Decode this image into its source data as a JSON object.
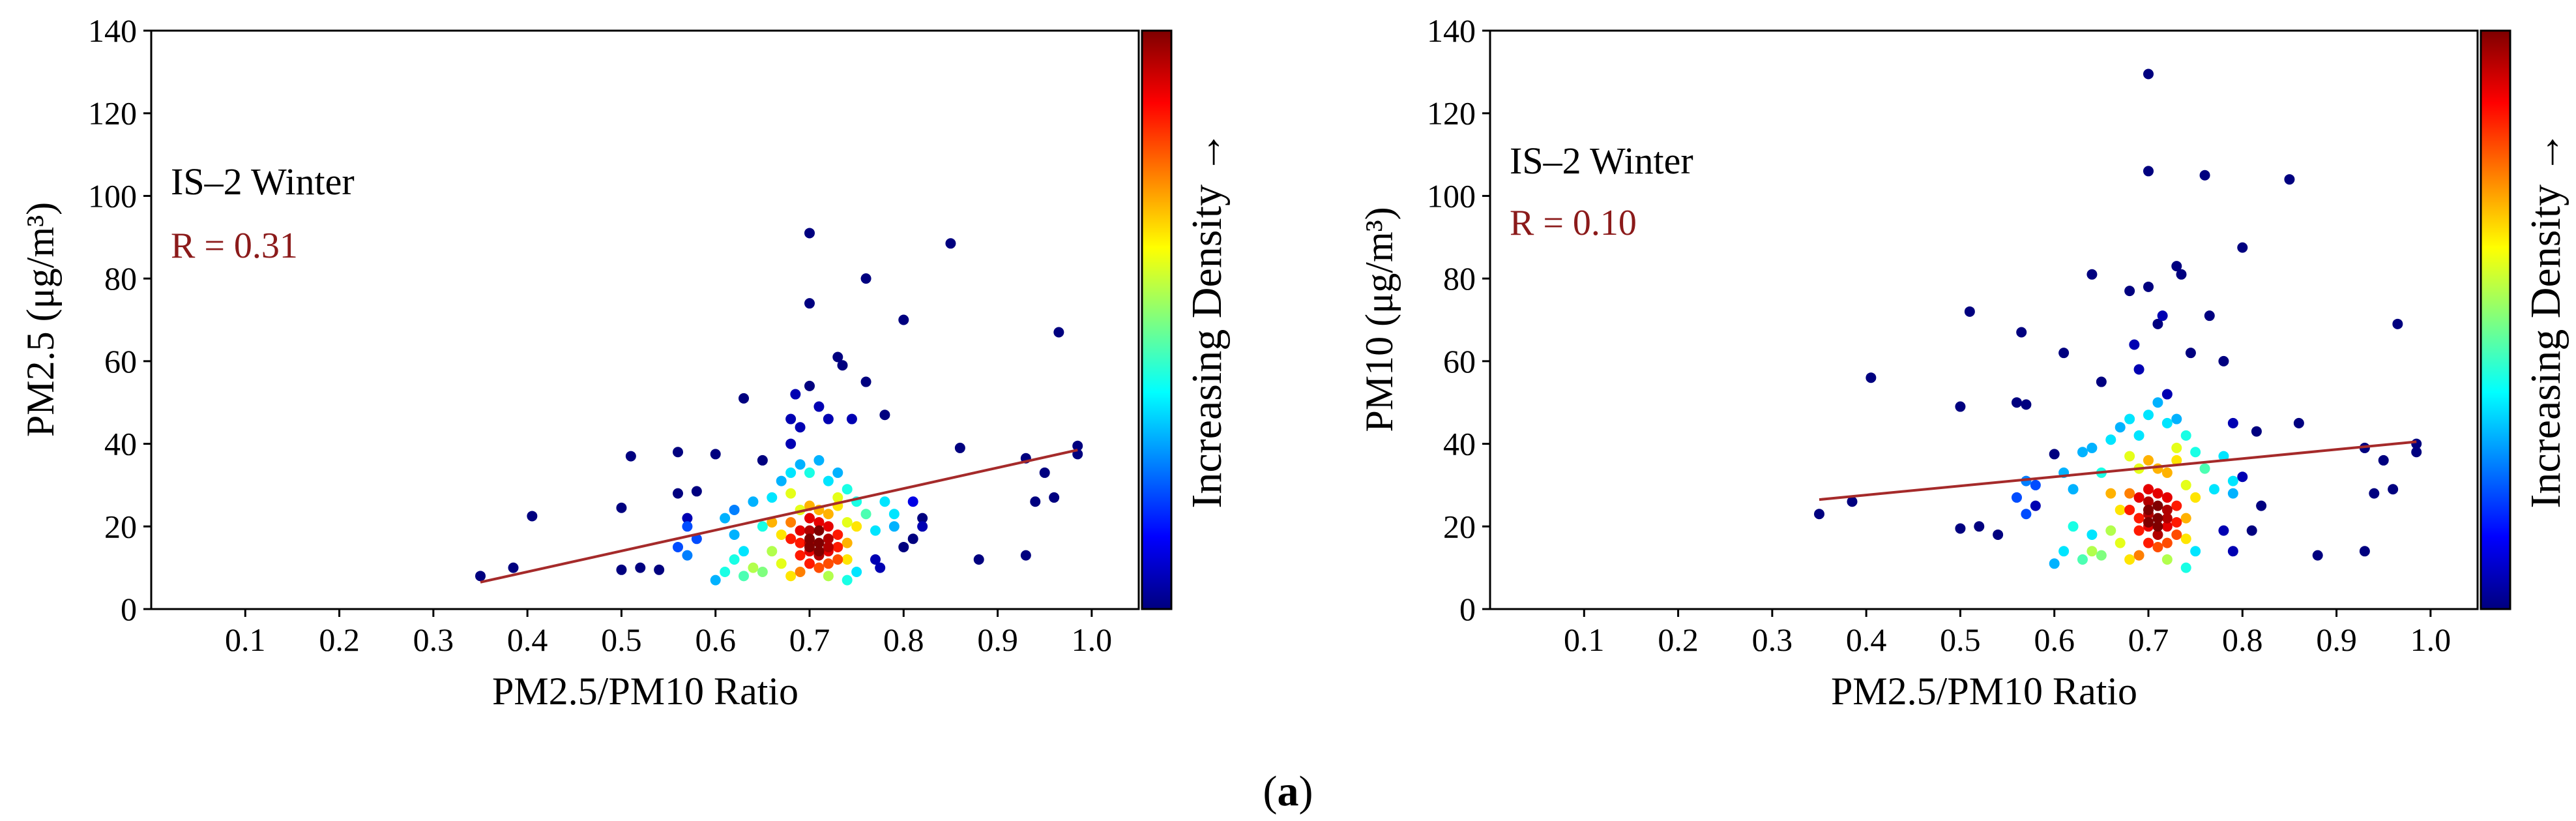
{
  "figure": {
    "sub_label_open": "(",
    "sub_label_letter": "a",
    "sub_label_close": ")"
  },
  "colorbar_label": "Increasing Density →",
  "colors": {
    "fit_line": "#a52a2a",
    "r_text": "#8b1a1a",
    "colormap": [
      "#00007f",
      "#0000ff",
      "#007fff",
      "#00ffff",
      "#7fff7f",
      "#ffff00",
      "#ff7f00",
      "#ff0000",
      "#7f0000"
    ]
  },
  "chart_data": [
    {
      "type": "scatter",
      "annotation": "IS–2 Winter",
      "r_label": "R = 0.31",
      "xlabel": "PM2.5/PM10 Ratio",
      "ylabel": "PM2.5 (μg/m³)",
      "xlim": [
        0.0,
        1.05
      ],
      "ylim": [
        0,
        140
      ],
      "xticks": [
        0.1,
        0.2,
        0.3,
        0.4,
        0.5,
        0.6,
        0.7,
        0.8,
        0.9,
        1.0
      ],
      "xtick_labels": [
        "0.1",
        "0.2",
        "0.3",
        "0.4",
        "0.5",
        "0.6",
        "0.7",
        "0.8",
        "0.9",
        "1.0"
      ],
      "yticks": [
        0,
        20,
        40,
        60,
        80,
        100,
        120,
        140
      ],
      "ytick_labels": [
        "0",
        "20",
        "40",
        "60",
        "80",
        "100",
        "120",
        "140"
      ],
      "fit_line": {
        "x": [
          0.35,
          0.985
        ],
        "y": [
          6.5,
          38.5
        ]
      },
      "points": [
        [
          0.35,
          8,
          0
        ],
        [
          0.385,
          10,
          0
        ],
        [
          0.405,
          22.5,
          0
        ],
        [
          0.5,
          9.5,
          0
        ],
        [
          0.5,
          24.5,
          0
        ],
        [
          0.51,
          37,
          0
        ],
        [
          0.52,
          10,
          0
        ],
        [
          0.54,
          9.5,
          0
        ],
        [
          0.56,
          28,
          0
        ],
        [
          0.56,
          38,
          0
        ],
        [
          0.57,
          22,
          0.05
        ],
        [
          0.58,
          28.5,
          0
        ],
        [
          0.6,
          37.5,
          0
        ],
        [
          0.63,
          51,
          0
        ],
        [
          0.65,
          36,
          0
        ],
        [
          0.68,
          46,
          0.05
        ],
        [
          0.68,
          40,
          0.05
        ],
        [
          0.685,
          52,
          0.05
        ],
        [
          0.69,
          44,
          0.05
        ],
        [
          0.7,
          91,
          0
        ],
        [
          0.7,
          74,
          0
        ],
        [
          0.7,
          54,
          0
        ],
        [
          0.71,
          49,
          0.05
        ],
        [
          0.72,
          46,
          0.05
        ],
        [
          0.73,
          61,
          0
        ],
        [
          0.735,
          59,
          0
        ],
        [
          0.745,
          46,
          0.05
        ],
        [
          0.76,
          80,
          0
        ],
        [
          0.76,
          55,
          0
        ],
        [
          0.78,
          47,
          0
        ],
        [
          0.8,
          70,
          0
        ],
        [
          0.85,
          88.5,
          0
        ],
        [
          0.86,
          39,
          0
        ],
        [
          0.88,
          12,
          0
        ],
        [
          0.93,
          36.5,
          0
        ],
        [
          0.93,
          13,
          0
        ],
        [
          0.94,
          26,
          0
        ],
        [
          0.95,
          33,
          0
        ],
        [
          0.96,
          27,
          0
        ],
        [
          0.965,
          67,
          0
        ],
        [
          0.985,
          37.5,
          0
        ],
        [
          0.985,
          39.5,
          0
        ],
        [
          0.81,
          17,
          0
        ],
        [
          0.82,
          22,
          0
        ],
        [
          0.82,
          20,
          0.05
        ],
        [
          0.77,
          12,
          0.05
        ],
        [
          0.775,
          10,
          0.05
        ],
        [
          0.8,
          15,
          0
        ],
        [
          0.81,
          26,
          0.1
        ],
        [
          0.56,
          15,
          0.2
        ],
        [
          0.57,
          20,
          0.2
        ],
        [
          0.57,
          13,
          0.25
        ],
        [
          0.58,
          17,
          0.2
        ],
        [
          0.6,
          7,
          0.3
        ],
        [
          0.61,
          9,
          0.4
        ],
        [
          0.61,
          22,
          0.3
        ],
        [
          0.62,
          12,
          0.4
        ],
        [
          0.62,
          18,
          0.3
        ],
        [
          0.62,
          24,
          0.25
        ],
        [
          0.63,
          8,
          0.45
        ],
        [
          0.63,
          14,
          0.35
        ],
        [
          0.64,
          26,
          0.3
        ],
        [
          0.65,
          9,
          0.5
        ],
        [
          0.65,
          20,
          0.4
        ],
        [
          0.66,
          27,
          0.35
        ],
        [
          0.67,
          31,
          0.3
        ],
        [
          0.68,
          33,
          0.35
        ],
        [
          0.69,
          35,
          0.3
        ],
        [
          0.7,
          33,
          0.4
        ],
        [
          0.71,
          36,
          0.3
        ],
        [
          0.72,
          31,
          0.35
        ],
        [
          0.73,
          33,
          0.3
        ],
        [
          0.74,
          29,
          0.4
        ],
        [
          0.75,
          26,
          0.4
        ],
        [
          0.76,
          23,
          0.45
        ],
        [
          0.77,
          19,
          0.35
        ],
        [
          0.78,
          26,
          0.35
        ],
        [
          0.79,
          23,
          0.35
        ],
        [
          0.79,
          20,
          0.3
        ],
        [
          0.75,
          9,
          0.35
        ],
        [
          0.74,
          7,
          0.4
        ],
        [
          0.64,
          10,
          0.55
        ],
        [
          0.66,
          14,
          0.55
        ],
        [
          0.67,
          11,
          0.6
        ],
        [
          0.68,
          8,
          0.65
        ],
        [
          0.68,
          28,
          0.6
        ],
        [
          0.69,
          24,
          0.6
        ],
        [
          0.73,
          27,
          0.6
        ],
        [
          0.74,
          21,
          0.6
        ],
        [
          0.72,
          8,
          0.55
        ],
        [
          0.71,
          24,
          0.7
        ],
        [
          0.7,
          25,
          0.7
        ],
        [
          0.72,
          23,
          0.7
        ],
        [
          0.73,
          25,
          0.65
        ],
        [
          0.74,
          16,
          0.7
        ],
        [
          0.75,
          20,
          0.65
        ],
        [
          0.74,
          12,
          0.65
        ],
        [
          0.66,
          21,
          0.7
        ],
        [
          0.69,
          9,
          0.75
        ],
        [
          0.67,
          18,
          0.65
        ],
        [
          0.68,
          21,
          0.75
        ],
        [
          0.68,
          17,
          0.85
        ],
        [
          0.69,
          13,
          0.85
        ],
        [
          0.69,
          19,
          0.9
        ],
        [
          0.7,
          14,
          0.9
        ],
        [
          0.7,
          11,
          0.85
        ],
        [
          0.7,
          16,
          0.95
        ],
        [
          0.7,
          19,
          0.95
        ],
        [
          0.7,
          22,
          0.9
        ],
        [
          0.71,
          13,
          0.95
        ],
        [
          0.71,
          16,
          1.0
        ],
        [
          0.71,
          19,
          1.0
        ],
        [
          0.71,
          21,
          0.9
        ],
        [
          0.72,
          14,
          0.9
        ],
        [
          0.72,
          17,
          0.95
        ],
        [
          0.72,
          20,
          0.9
        ],
        [
          0.73,
          15,
          0.85
        ],
        [
          0.73,
          18,
          0.85
        ],
        [
          0.73,
          12,
          0.8
        ],
        [
          0.71,
          10,
          0.8
        ],
        [
          0.69,
          16,
          0.85
        ],
        [
          0.72,
          11,
          0.8
        ],
        [
          0.7,
          15,
          1.0
        ],
        [
          0.71,
          14,
          1.0
        ],
        [
          0.7,
          17,
          1.0
        ],
        [
          0.72,
          15,
          0.95
        ]
      ]
    },
    {
      "type": "scatter",
      "annotation": "IS–2 Winter",
      "r_label": "R = 0.10",
      "xlabel": "PM2.5/PM10 Ratio",
      "ylabel": "PM10 (μg/m³)",
      "xlim": [
        0.0,
        1.05
      ],
      "ylim": [
        0,
        140
      ],
      "xticks": [
        0.1,
        0.2,
        0.3,
        0.4,
        0.5,
        0.6,
        0.7,
        0.8,
        0.9,
        1.0
      ],
      "xtick_labels": [
        "0.1",
        "0.2",
        "0.3",
        "0.4",
        "0.5",
        "0.6",
        "0.7",
        "0.8",
        "0.9",
        "1.0"
      ],
      "yticks": [
        0,
        20,
        40,
        60,
        80,
        100,
        120,
        140
      ],
      "ytick_labels": [
        "0",
        "20",
        "40",
        "60",
        "80",
        "100",
        "120",
        "140"
      ],
      "fit_line": {
        "x": [
          0.35,
          0.985
        ],
        "y": [
          26.5,
          40.5
        ]
      },
      "points": [
        [
          0.35,
          23,
          0
        ],
        [
          0.385,
          26,
          0
        ],
        [
          0.405,
          56,
          0
        ],
        [
          0.5,
          49,
          0
        ],
        [
          0.5,
          19.5,
          0
        ],
        [
          0.51,
          72,
          0
        ],
        [
          0.52,
          20,
          0
        ],
        [
          0.54,
          18,
          0
        ],
        [
          0.56,
          50,
          0
        ],
        [
          0.565,
          67,
          0
        ],
        [
          0.57,
          49.5,
          0
        ],
        [
          0.58,
          25,
          0.05
        ],
        [
          0.6,
          37.5,
          0
        ],
        [
          0.61,
          62,
          0
        ],
        [
          0.64,
          81,
          0
        ],
        [
          0.65,
          55,
          0
        ],
        [
          0.68,
          77,
          0
        ],
        [
          0.685,
          64,
          0.05
        ],
        [
          0.69,
          58,
          0.05
        ],
        [
          0.7,
          129.5,
          0
        ],
        [
          0.7,
          106,
          0
        ],
        [
          0.7,
          78,
          0
        ],
        [
          0.71,
          69,
          0
        ],
        [
          0.715,
          71,
          0.05
        ],
        [
          0.72,
          52,
          0.05
        ],
        [
          0.73,
          83,
          0
        ],
        [
          0.735,
          81,
          0
        ],
        [
          0.745,
          62,
          0
        ],
        [
          0.76,
          105,
          0
        ],
        [
          0.765,
          71,
          0
        ],
        [
          0.78,
          60,
          0
        ],
        [
          0.8,
          87.5,
          0
        ],
        [
          0.85,
          104,
          0
        ],
        [
          0.86,
          45,
          0
        ],
        [
          0.88,
          13,
          0
        ],
        [
          0.93,
          39,
          0
        ],
        [
          0.93,
          14,
          0
        ],
        [
          0.94,
          28,
          0
        ],
        [
          0.95,
          36,
          0
        ],
        [
          0.96,
          29,
          0
        ],
        [
          0.965,
          69,
          0
        ],
        [
          0.985,
          38,
          0
        ],
        [
          0.985,
          40,
          0
        ],
        [
          0.81,
          19,
          0
        ],
        [
          0.82,
          25,
          0
        ],
        [
          0.79,
          45,
          0.05
        ],
        [
          0.8,
          32,
          0.05
        ],
        [
          0.78,
          19,
          0.05
        ],
        [
          0.79,
          14,
          0.05
        ],
        [
          0.815,
          43,
          0
        ],
        [
          0.56,
          27,
          0.2
        ],
        [
          0.57,
          23,
          0.2
        ],
        [
          0.57,
          31,
          0.25
        ],
        [
          0.58,
          30,
          0.2
        ],
        [
          0.6,
          11,
          0.3
        ],
        [
          0.61,
          14,
          0.35
        ],
        [
          0.61,
          33,
          0.3
        ],
        [
          0.62,
          20,
          0.4
        ],
        [
          0.62,
          29,
          0.3
        ],
        [
          0.63,
          38,
          0.3
        ],
        [
          0.63,
          12,
          0.45
        ],
        [
          0.64,
          18,
          0.35
        ],
        [
          0.64,
          39,
          0.3
        ],
        [
          0.65,
          13,
          0.5
        ],
        [
          0.65,
          33,
          0.4
        ],
        [
          0.66,
          41,
          0.35
        ],
        [
          0.67,
          44,
          0.3
        ],
        [
          0.68,
          46,
          0.35
        ],
        [
          0.69,
          42,
          0.35
        ],
        [
          0.7,
          47,
          0.35
        ],
        [
          0.71,
          50,
          0.3
        ],
        [
          0.72,
          45,
          0.35
        ],
        [
          0.73,
          46,
          0.3
        ],
        [
          0.74,
          42,
          0.4
        ],
        [
          0.75,
          38,
          0.4
        ],
        [
          0.76,
          34,
          0.45
        ],
        [
          0.77,
          29,
          0.35
        ],
        [
          0.78,
          37,
          0.35
        ],
        [
          0.79,
          31,
          0.35
        ],
        [
          0.79,
          28,
          0.3
        ],
        [
          0.75,
          14,
          0.35
        ],
        [
          0.74,
          10,
          0.4
        ],
        [
          0.64,
          14,
          0.55
        ],
        [
          0.66,
          19,
          0.55
        ],
        [
          0.67,
          16,
          0.6
        ],
        [
          0.68,
          12,
          0.65
        ],
        [
          0.68,
          37,
          0.6
        ],
        [
          0.69,
          34,
          0.6
        ],
        [
          0.73,
          39,
          0.6
        ],
        [
          0.74,
          30,
          0.6
        ],
        [
          0.72,
          12,
          0.55
        ],
        [
          0.71,
          34,
          0.7
        ],
        [
          0.7,
          36,
          0.7
        ],
        [
          0.72,
          33,
          0.7
        ],
        [
          0.73,
          36,
          0.65
        ],
        [
          0.74,
          22,
          0.7
        ],
        [
          0.75,
          27,
          0.65
        ],
        [
          0.74,
          17,
          0.65
        ],
        [
          0.66,
          28,
          0.7
        ],
        [
          0.69,
          13,
          0.75
        ],
        [
          0.67,
          24,
          0.65
        ],
        [
          0.68,
          28,
          0.75
        ],
        [
          0.68,
          24,
          0.85
        ],
        [
          0.69,
          19,
          0.85
        ],
        [
          0.69,
          27,
          0.9
        ],
        [
          0.7,
          20,
          0.9
        ],
        [
          0.7,
          16,
          0.85
        ],
        [
          0.7,
          23,
          0.95
        ],
        [
          0.7,
          26,
          0.95
        ],
        [
          0.7,
          29,
          0.9
        ],
        [
          0.71,
          18,
          0.95
        ],
        [
          0.71,
          22,
          1.0
        ],
        [
          0.71,
          25,
          1.0
        ],
        [
          0.71,
          28,
          0.9
        ],
        [
          0.72,
          20,
          0.9
        ],
        [
          0.72,
          24,
          0.95
        ],
        [
          0.72,
          27,
          0.9
        ],
        [
          0.73,
          21,
          0.85
        ],
        [
          0.73,
          25,
          0.85
        ],
        [
          0.73,
          18,
          0.8
        ],
        [
          0.71,
          15,
          0.8
        ],
        [
          0.69,
          22,
          0.85
        ],
        [
          0.72,
          16,
          0.8
        ],
        [
          0.7,
          21,
          1.0
        ],
        [
          0.71,
          20,
          1.0
        ],
        [
          0.7,
          24,
          1.0
        ],
        [
          0.72,
          22,
          0.95
        ]
      ]
    }
  ]
}
